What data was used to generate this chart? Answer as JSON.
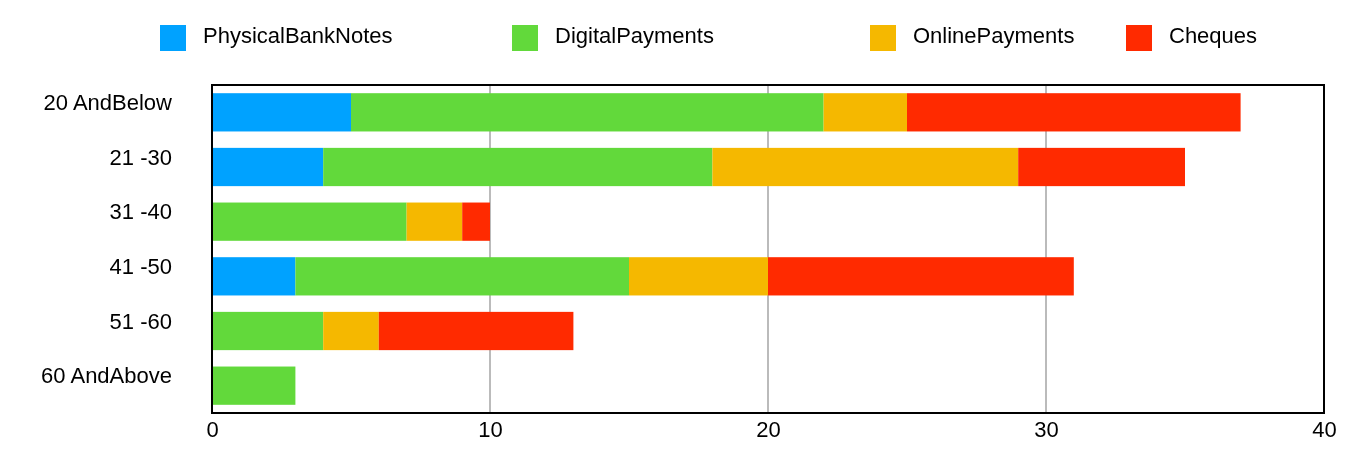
{
  "chart_data": {
    "type": "bar",
    "orientation": "horizontal",
    "stacked": true,
    "categories": [
      "20 AndBelow",
      "21 -30",
      "31 -40",
      "41 -50",
      "51 -60",
      "60 AndAbove"
    ],
    "series": [
      {
        "name": "PhysicalBankNotes",
        "color": "#00a2ff",
        "values": [
          5,
          4,
          0,
          3,
          0,
          0
        ]
      },
      {
        "name": "DigitalPayments",
        "color": "#62d93b",
        "values": [
          17,
          14,
          7,
          12,
          4,
          3
        ]
      },
      {
        "name": "OnlinePayments",
        "color": "#f5b800",
        "values": [
          3,
          11,
          2,
          5,
          2,
          0
        ]
      },
      {
        "name": "Cheques",
        "color": "#ff2a00",
        "values": [
          12,
          6,
          1,
          11,
          7,
          0
        ]
      }
    ],
    "xlim": [
      0,
      40
    ],
    "xticks": [
      0,
      10,
      20,
      30,
      40
    ],
    "grid": "x",
    "legend": "top"
  }
}
